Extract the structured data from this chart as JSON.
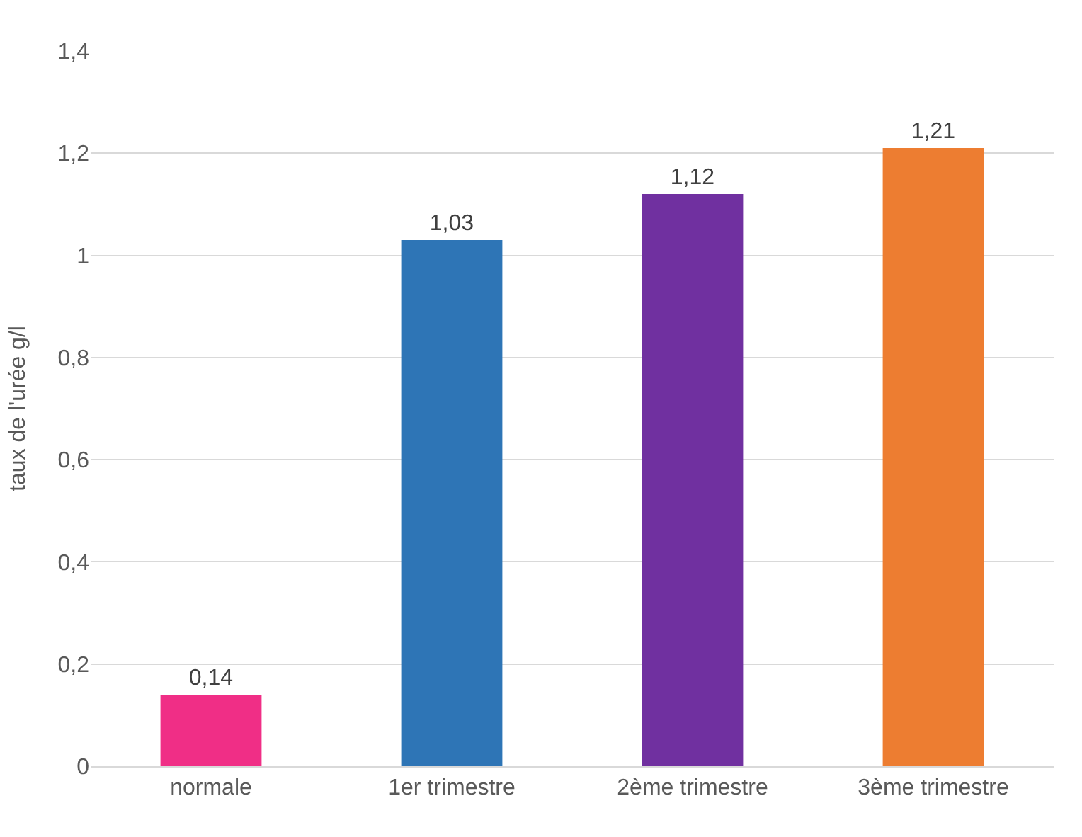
{
  "chart_data": {
    "type": "bar",
    "categories": [
      "normale",
      "1er trimestre",
      "2ème trimestre",
      "3ème trimestre"
    ],
    "values": [
      0.14,
      1.03,
      1.12,
      1.21
    ],
    "colors": [
      "#f02e86",
      "#2e75b6",
      "#7030a0",
      "#ed7d31"
    ],
    "value_labels": [
      "0,14",
      "1,03",
      "1,12",
      "1,21"
    ],
    "ylabel": "taux de l'urée g/l",
    "ylim": [
      0,
      1.4
    ],
    "yticks": [
      0,
      {
        "value": 0.2,
        "label": "0,2"
      },
      {
        "value": 0.4,
        "label": "0,4"
      },
      {
        "value": 0.6,
        "label": "0,6"
      },
      {
        "value": 0.8,
        "label": "0,8"
      },
      1,
      {
        "value": 1.2,
        "label": "1,2"
      },
      {
        "value": 1.4,
        "label": "1,4"
      }
    ],
    "grid": "y"
  }
}
